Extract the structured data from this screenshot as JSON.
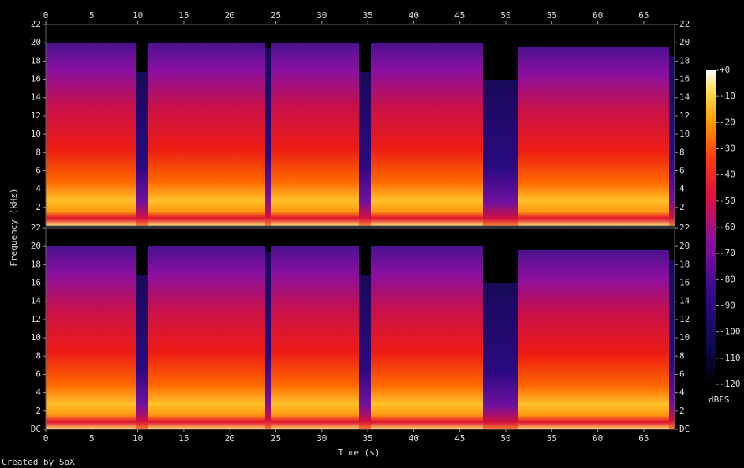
{
  "chart_data": [
    {
      "type": "spectrogram",
      "ylabel": "Frequency (kHz)",
      "xlim": [
        0,
        68.35
      ],
      "xticks": [
        0,
        5,
        10,
        15,
        20,
        25,
        30,
        35,
        40,
        45,
        50,
        55,
        60,
        65
      ],
      "ylim": [
        0,
        22
      ],
      "yticks": [
        2,
        4,
        6,
        8,
        10,
        12,
        14,
        16,
        18,
        20,
        22
      ]
    },
    {
      "type": "spectrogram",
      "xlabel": "Time (s)",
      "xlim": [
        0,
        68.35
      ],
      "xticks": [
        0,
        5,
        10,
        15,
        20,
        25,
        30,
        35,
        40,
        45,
        50,
        55,
        60,
        65
      ],
      "ylim": [
        0,
        22
      ],
      "yticks": [
        {
          "value": 0,
          "label": "DC"
        },
        2,
        4,
        6,
        8,
        10,
        12,
        14,
        16,
        18,
        20,
        22
      ]
    }
  ],
  "colorbar": {
    "label": "dBFS",
    "lim": [
      -120,
      0
    ],
    "ticks": [
      {
        "value": 0,
        "label": "+0"
      },
      -10,
      -20,
      -30,
      -40,
      -50,
      -60,
      -70,
      -80,
      -90,
      -100,
      -110,
      -120
    ]
  },
  "footer": "Created by SoX"
}
